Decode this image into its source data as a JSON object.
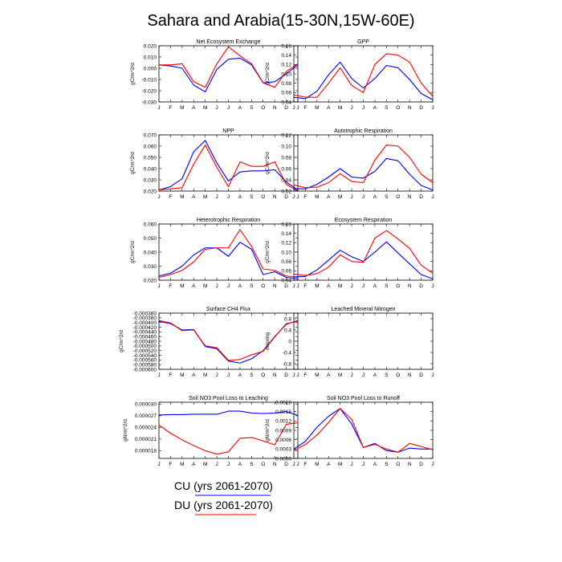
{
  "figure_title": "Sahara and Arabia(15-30N,15W-60E)",
  "legend": [
    {
      "label": "CU (yrs 2061-2070)",
      "color": "#0000ff"
    },
    {
      "label": "DU (yrs 2061-2070)",
      "color": "#ff0000"
    }
  ],
  "chart_data": [
    {
      "type": "line",
      "title": "Net Ecosystem Exchange",
      "ylabel": "gC/m^2/d",
      "categories": [
        "J",
        "F",
        "M",
        "A",
        "M",
        "J",
        "J",
        "A",
        "S",
        "O",
        "N",
        "D",
        "J"
      ],
      "ylim": [
        -0.03,
        0.02
      ],
      "yticks": [
        -0.03,
        -0.02,
        -0.01,
        0.0,
        0.01,
        0.02
      ],
      "ytick_labels": [
        "-0.030",
        "-0.020",
        "-0.010",
        "0.000",
        "0.010",
        "0.020"
      ],
      "series": [
        {
          "name": "CU",
          "values": [
            0.003,
            0.002,
            0.0,
            -0.015,
            -0.021,
            -0.001,
            0.008,
            0.009,
            0.003,
            -0.013,
            -0.012,
            -0.005,
            0.003
          ]
        },
        {
          "name": "DU",
          "values": [
            0.003,
            0.003,
            0.004,
            -0.012,
            -0.017,
            0.004,
            0.019,
            0.011,
            0.004,
            -0.013,
            -0.017,
            -0.003,
            0.004
          ]
        }
      ]
    },
    {
      "type": "line",
      "title": "GPP",
      "ylabel": "gC/m^2/d",
      "categories": [
        "J",
        "F",
        "M",
        "A",
        "M",
        "J",
        "J",
        "A",
        "S",
        "O",
        "N",
        "D",
        "J"
      ],
      "ylim": [
        0.04,
        0.16
      ],
      "yticks": [
        0.04,
        0.06,
        0.08,
        0.1,
        0.12,
        0.14,
        0.16
      ],
      "ytick_labels": [
        "0.04",
        "0.06",
        "0.08",
        "0.10",
        "0.12",
        "0.14",
        "0.16"
      ],
      "series": [
        {
          "name": "CU",
          "values": [
            0.05,
            0.047,
            0.063,
            0.098,
            0.125,
            0.09,
            0.07,
            0.09,
            0.118,
            0.113,
            0.088,
            0.058,
            0.045
          ]
        },
        {
          "name": "DU",
          "values": [
            0.055,
            0.05,
            0.05,
            0.08,
            0.113,
            0.075,
            0.06,
            0.12,
            0.143,
            0.14,
            0.125,
            0.08,
            0.052
          ]
        }
      ]
    },
    {
      "type": "line",
      "title": "NPP",
      "ylabel": "gC/m^2/d",
      "categories": [
        "J",
        "F",
        "M",
        "A",
        "M",
        "J",
        "J",
        "A",
        "S",
        "O",
        "N",
        "D",
        "J"
      ],
      "ylim": [
        0.02,
        0.07
      ],
      "yticks": [
        0.02,
        0.03,
        0.04,
        0.05,
        0.06,
        0.07
      ],
      "ytick_labels": [
        "0.020",
        "0.030",
        "0.040",
        "0.050",
        "0.060",
        "0.070"
      ],
      "series": [
        {
          "name": "CU",
          "values": [
            0.021,
            0.024,
            0.031,
            0.055,
            0.065,
            0.045,
            0.029,
            0.037,
            0.038,
            0.038,
            0.039,
            0.028,
            0.021
          ]
        },
        {
          "name": "DU",
          "values": [
            0.021,
            0.022,
            0.023,
            0.044,
            0.061,
            0.041,
            0.024,
            0.046,
            0.042,
            0.042,
            0.046,
            0.026,
            0.02
          ]
        }
      ]
    },
    {
      "type": "line",
      "title": "Autotrophic Respiration",
      "ylabel": "gC/m^2/d",
      "categories": [
        "J",
        "F",
        "M",
        "A",
        "M",
        "J",
        "J",
        "A",
        "S",
        "O",
        "N",
        "D",
        "J"
      ],
      "ylim": [
        0.02,
        0.12
      ],
      "yticks": [
        0.02,
        0.04,
        0.06,
        0.08,
        0.1,
        0.12
      ],
      "ytick_labels": [
        "0.02",
        "0.04",
        "0.06",
        "0.08",
        "0.10",
        "0.12"
      ],
      "series": [
        {
          "name": "CU",
          "values": [
            0.024,
            0.024,
            0.032,
            0.045,
            0.06,
            0.045,
            0.043,
            0.055,
            0.078,
            0.074,
            0.05,
            0.03,
            0.022
          ]
        },
        {
          "name": "DU",
          "values": [
            0.031,
            0.026,
            0.027,
            0.035,
            0.051,
            0.037,
            0.035,
            0.075,
            0.102,
            0.1,
            0.08,
            0.05,
            0.035
          ]
        }
      ]
    },
    {
      "type": "line",
      "title": "Heterotrophic Respiration",
      "ylabel": "gC/m^2/d",
      "categories": [
        "J",
        "F",
        "M",
        "A",
        "M",
        "J",
        "J",
        "A",
        "S",
        "O",
        "N",
        "D",
        "J"
      ],
      "ylim": [
        0.02,
        0.06
      ],
      "yticks": [
        0.02,
        0.03,
        0.04,
        0.05,
        0.06
      ],
      "ytick_labels": [
        "0.020",
        "0.030",
        "0.040",
        "0.050",
        "0.060"
      ],
      "series": [
        {
          "name": "CU",
          "values": [
            0.023,
            0.025,
            0.03,
            0.038,
            0.043,
            0.043,
            0.037,
            0.047,
            0.042,
            0.024,
            0.026,
            0.022,
            0.021
          ]
        },
        {
          "name": "DU",
          "values": [
            0.022,
            0.024,
            0.027,
            0.033,
            0.042,
            0.043,
            0.043,
            0.056,
            0.044,
            0.028,
            0.027,
            0.023,
            0.022
          ]
        }
      ]
    },
    {
      "type": "line",
      "title": "Ecosystem Respiration",
      "ylabel": "gC/m^2/d",
      "categories": [
        "J",
        "F",
        "M",
        "A",
        "M",
        "J",
        "J",
        "A",
        "S",
        "O",
        "N",
        "D",
        "J"
      ],
      "ylim": [
        0.04,
        0.16
      ],
      "yticks": [
        0.04,
        0.06,
        0.08,
        0.1,
        0.12,
        0.14,
        0.16
      ],
      "ytick_labels": [
        "0.04",
        "0.06",
        "0.08",
        "0.10",
        "0.12",
        "0.14",
        "0.16"
      ],
      "series": [
        {
          "name": "CU",
          "values": [
            0.047,
            0.048,
            0.062,
            0.083,
            0.104,
            0.09,
            0.08,
            0.1,
            0.122,
            0.098,
            0.075,
            0.052,
            0.043
          ]
        },
        {
          "name": "DU",
          "values": [
            0.053,
            0.05,
            0.054,
            0.068,
            0.094,
            0.08,
            0.078,
            0.13,
            0.146,
            0.128,
            0.108,
            0.072,
            0.055
          ]
        }
      ]
    },
    {
      "type": "line",
      "title": "Surface CH4 Flux",
      "ylabel": "gC/m^2/d",
      "categories": [
        "J",
        "F",
        "M",
        "A",
        "M",
        "J",
        "J",
        "A",
        "S",
        "O",
        "N",
        "D",
        "J"
      ],
      "ylim": [
        -0.0006,
        -0.00036
      ],
      "yticks": [
        -0.0006,
        -0.00058,
        -0.00056,
        -0.00054,
        -0.00052,
        -0.0005,
        -0.00048,
        -0.00046,
        -0.00044,
        -0.00042,
        -0.0004,
        -0.00038,
        -0.00036
      ],
      "ytick_labels": [
        "-0.000600",
        "-0.000580",
        "-0.000560",
        "-0.000540",
        "-0.000520",
        "-0.000500",
        "-0.000480",
        "-0.000460",
        "-0.000440",
        "-0.000420",
        "-0.000400",
        "-0.000380",
        "-0.000360"
      ],
      "series": [
        {
          "name": "CU",
          "values": [
            -0.000395,
            -0.000405,
            -0.000432,
            -0.00043,
            -0.000503,
            -0.000512,
            -0.000565,
            -0.000573,
            -0.000555,
            -0.00052,
            -0.00046,
            -0.000408,
            -0.000392
          ]
        },
        {
          "name": "DU",
          "values": [
            -0.000392,
            -0.000402,
            -0.000435,
            -0.000432,
            -0.0005,
            -0.000508,
            -0.000562,
            -0.000558,
            -0.000538,
            -0.000523,
            -0.000462,
            -0.000405,
            -0.000395
          ]
        }
      ]
    },
    {
      "type": "line",
      "title": "Leached Mineral Nitrogen",
      "ylabel": "missing",
      "categories": [
        "J",
        "F",
        "M",
        "A",
        "M",
        "J",
        "J",
        "A",
        "S",
        "O",
        "N",
        "D",
        "J"
      ],
      "ylim": [
        -1.0,
        1.0
      ],
      "yticks": [
        -0.8,
        -0.4,
        0.0,
        0.4,
        0.8
      ],
      "ytick_labels": [
        "-0.8",
        "-0.4",
        "0",
        "0.4",
        "0.8"
      ],
      "series": []
    },
    {
      "type": "line",
      "title": "Soil NO3 Pool Loss to Leaching",
      "ylabel": "gN/m^2/d",
      "categories": [
        "J",
        "F",
        "M",
        "A",
        "M",
        "J",
        "J",
        "A",
        "S",
        "O",
        "N",
        "D",
        "J"
      ],
      "ylim": [
        1.6e-05,
        3.05e-05
      ],
      "yticks": [
        1.8e-05,
        2.1e-05,
        2.4e-05,
        2.7e-05,
        3e-05
      ],
      "ytick_labels": [
        "0.000018",
        "0.000021",
        "0.000024",
        "0.000027",
        "0.000030"
      ],
      "series": [
        {
          "name": "CU",
          "values": [
            2.72e-05,
            2.73e-05,
            2.73e-05,
            2.74e-05,
            2.74e-05,
            2.74e-05,
            2.82e-05,
            2.82e-05,
            2.77e-05,
            2.76e-05,
            2.77e-05,
            2.81e-05,
            2.71e-05
          ]
        },
        {
          "name": "DU",
          "values": [
            2.46e-05,
            2.25e-05,
            2.08e-05,
            1.93e-05,
            1.8e-05,
            1.71e-05,
            1.77e-05,
            2.12e-05,
            2.14e-05,
            2.05e-05,
            1.95e-05,
            2.48e-05,
            2.52e-05
          ]
        }
      ]
    },
    {
      "type": "line",
      "title": "Soil NO3 Pool Loss to Runoff",
      "ylabel": "gN/m^2/d",
      "categories": [
        "J",
        "F",
        "M",
        "A",
        "M",
        "J",
        "J",
        "A",
        "S",
        "O",
        "N",
        "D",
        "J"
      ],
      "ylim": [
        0.0,
        0.0018
      ],
      "yticks": [
        0.0,
        0.0003,
        0.0006,
        0.0009,
        0.0012,
        0.0015,
        0.0018
      ],
      "ytick_labels": [
        "0.0000",
        "0.0003",
        "0.0006",
        "0.0009",
        "0.0012",
        "0.0015",
        "0.0018"
      ],
      "series": [
        {
          "name": "CU",
          "values": [
            0.0003,
            0.00055,
            0.001,
            0.00135,
            0.0016,
            0.0011,
            0.00035,
            0.00048,
            0.00025,
            0.0002,
            0.00033,
            0.0003,
            0.0003
          ]
        },
        {
          "name": "DU",
          "values": [
            0.00025,
            0.00045,
            0.00075,
            0.00115,
            0.0016,
            0.00125,
            0.00035,
            0.00045,
            0.0003,
            0.0002,
            0.00048,
            0.00038,
            0.00028
          ]
        }
      ]
    }
  ]
}
